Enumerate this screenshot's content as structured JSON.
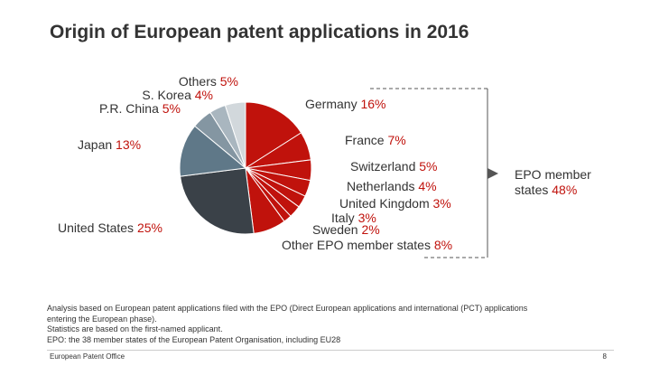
{
  "title": "Origin of European patent applications in 2016",
  "chart_data": {
    "type": "pie",
    "title": "Origin of European patent applications in 2016",
    "slices": [
      {
        "label": "Germany",
        "value": 16,
        "pct_text": "16%",
        "color": "#c0120c",
        "group": "epo"
      },
      {
        "label": "France",
        "value": 7,
        "pct_text": "7%",
        "color": "#c0120c",
        "group": "epo"
      },
      {
        "label": "Switzerland",
        "value": 5,
        "pct_text": "5%",
        "color": "#c0120c",
        "group": "epo"
      },
      {
        "label": "Netherlands",
        "value": 4,
        "pct_text": "4%",
        "color": "#c0120c",
        "group": "epo"
      },
      {
        "label": "United Kingdom",
        "value": 3,
        "pct_text": "3%",
        "color": "#c0120c",
        "group": "epo"
      },
      {
        "label": "Italy",
        "value": 3,
        "pct_text": "3%",
        "color": "#c0120c",
        "group": "epo"
      },
      {
        "label": "Sweden",
        "value": 2,
        "pct_text": "2%",
        "color": "#c0120c",
        "group": "epo"
      },
      {
        "label": "Other EPO member states",
        "value": 8,
        "pct_text": "8%",
        "color": "#c0120c",
        "group": "epo"
      },
      {
        "label": "United States",
        "value": 25,
        "pct_text": "25%",
        "color": "#3a4148",
        "group": "other"
      },
      {
        "label": "Japan",
        "value": 13,
        "pct_text": "13%",
        "color": "#5f7888",
        "group": "other"
      },
      {
        "label": "P.R. China",
        "value": 5,
        "pct_text": "5%",
        "color": "#8496a2",
        "group": "other"
      },
      {
        "label": "S. Korea",
        "value": 4,
        "pct_text": "4%",
        "color": "#a9b6bf",
        "group": "other"
      },
      {
        "label": "Others",
        "value": 5,
        "pct_text": "5%",
        "color": "#d2d8dc",
        "group": "other"
      }
    ],
    "group_label": {
      "label": "EPO member states",
      "pct_text": "48%"
    }
  },
  "notes": [
    "Analysis based on European patent applications filed with the EPO (Direct European applications and international (PCT) applications",
    "entering the European phase).",
    "Statistics are based on the first-named applicant.",
    "EPO: the 38 member states of the European Patent Organisation, including EU28"
  ],
  "footer": {
    "organisation": "European Patent Office",
    "page": "8"
  }
}
